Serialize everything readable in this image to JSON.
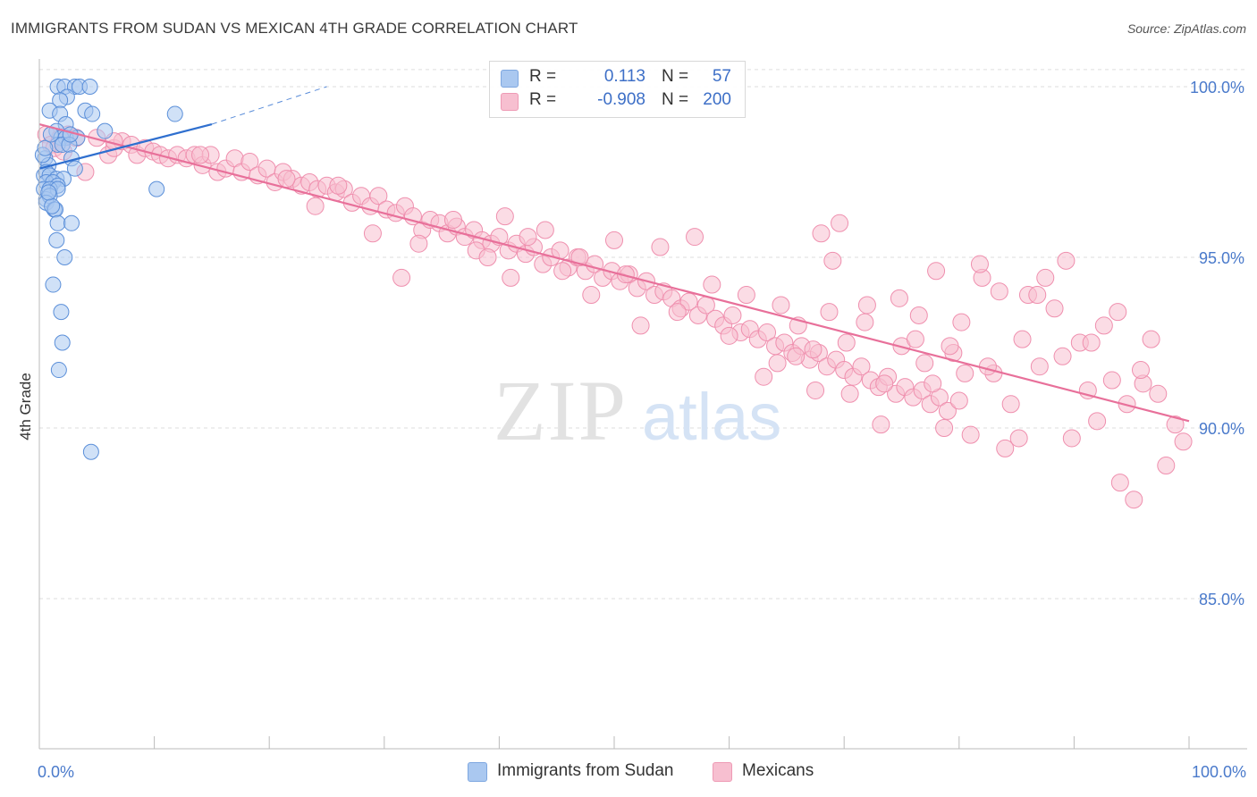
{
  "title": "IMMIGRANTS FROM SUDAN VS MEXICAN 4TH GRADE CORRELATION CHART",
  "source": "Source: ZipAtlas.com",
  "watermark": {
    "zip": "ZIP",
    "atlas": "atlas"
  },
  "colors": {
    "blue_fill": "#aac8f0",
    "blue_stroke": "#5b8fd9",
    "blue_line": "#2f6fcf",
    "pink_fill": "#f7bfd0",
    "pink_stroke": "#ef8fae",
    "pink_line": "#e8709a",
    "axis_value": "#4a7acb",
    "grid": "#dddddd"
  },
  "legend": [
    {
      "r_label": "R =",
      "r_value": "0.113",
      "n_label": "N =",
      "n_value": "57",
      "color": "#aac8f0"
    },
    {
      "r_label": "R =",
      "r_value": "-0.908",
      "n_label": "N =",
      "n_value": "200",
      "color": "#f7bfd0"
    }
  ],
  "bottom_legend": [
    {
      "label": "Immigrants from Sudan",
      "color": "#aac8f0"
    },
    {
      "label": "Mexicans",
      "color": "#f7bfd0"
    }
  ],
  "chart_data": {
    "type": "scatter",
    "title": "IMMIGRANTS FROM SUDAN VS MEXICAN 4TH GRADE CORRELATION CHART",
    "xlabel": "",
    "ylabel": "4th Grade",
    "xlim": [
      0,
      100
    ],
    "ylim": [
      80.5,
      100.5
    ],
    "x_tick_labels": [
      "0.0%",
      "100.0%"
    ],
    "y_ticks": [
      85,
      90,
      95,
      100
    ],
    "y_tick_labels": [
      "85.0%",
      "90.0%",
      "95.0%",
      "100.0%"
    ],
    "grid": true,
    "legend_position": "top-center",
    "series": [
      {
        "name": "Immigrants from Sudan",
        "r": 0.113,
        "n": 57,
        "trend": {
          "x": [
            0,
            15
          ],
          "y": [
            97.6,
            98.9
          ],
          "dashed_to": [
            25,
            100
          ]
        },
        "points": [
          [
            1.6,
            100
          ],
          [
            2.2,
            100
          ],
          [
            3.1,
            100
          ],
          [
            3.5,
            100
          ],
          [
            4.4,
            100
          ],
          [
            2.4,
            99.7
          ],
          [
            1.8,
            99.6
          ],
          [
            0.9,
            99.3
          ],
          [
            1.8,
            99.2
          ],
          [
            4.0,
            99.3
          ],
          [
            4.6,
            99.2
          ],
          [
            2.3,
            98.9
          ],
          [
            1.5,
            98.7
          ],
          [
            5.7,
            98.7
          ],
          [
            11.8,
            99.2
          ],
          [
            1.9,
            98.5
          ],
          [
            2.3,
            98.5
          ],
          [
            3.3,
            98.5
          ],
          [
            1.6,
            98.3
          ],
          [
            2.0,
            98.3
          ],
          [
            2.6,
            98.3
          ],
          [
            0.5,
            97.9
          ],
          [
            0.8,
            97.7
          ],
          [
            2.8,
            97.9
          ],
          [
            3.1,
            97.6
          ],
          [
            0.4,
            97.4
          ],
          [
            0.6,
            97.5
          ],
          [
            0.9,
            97.4
          ],
          [
            1.5,
            97.3
          ],
          [
            2.1,
            97.3
          ],
          [
            0.6,
            97.2
          ],
          [
            1.2,
            97.2
          ],
          [
            1.6,
            97.1
          ],
          [
            0.4,
            97.0
          ],
          [
            0.9,
            97.0
          ],
          [
            1.6,
            97.0
          ],
          [
            0.6,
            96.7
          ],
          [
            0.9,
            96.8
          ],
          [
            0.6,
            96.6
          ],
          [
            1.3,
            96.4
          ],
          [
            1.4,
            96.4
          ],
          [
            10.2,
            97.0
          ],
          [
            1.6,
            96.0
          ],
          [
            2.8,
            96.0
          ],
          [
            1.5,
            95.5
          ],
          [
            2.2,
            95.0
          ],
          [
            1.2,
            94.2
          ],
          [
            1.9,
            93.4
          ],
          [
            2.0,
            92.5
          ],
          [
            1.7,
            91.7
          ],
          [
            4.5,
            89.3
          ],
          [
            0.3,
            98.0
          ],
          [
            0.5,
            98.2
          ],
          [
            1.0,
            98.6
          ],
          [
            2.7,
            98.6
          ],
          [
            1.1,
            96.5
          ],
          [
            0.8,
            96.9
          ]
        ]
      },
      {
        "name": "Mexicans",
        "r": -0.908,
        "n": 200,
        "trend": {
          "x": [
            0,
            100
          ],
          "y": [
            98.9,
            90.2
          ]
        },
        "points": [
          [
            0.6,
            98.6
          ],
          [
            1.0,
            98.3
          ],
          [
            1.8,
            98.5
          ],
          [
            2.5,
            98.6
          ],
          [
            3.2,
            98.5
          ],
          [
            1.3,
            98.2
          ],
          [
            2.1,
            98.1
          ],
          [
            4.0,
            97.5
          ],
          [
            5.0,
            98.5
          ],
          [
            6.0,
            98.0
          ],
          [
            6.5,
            98.2
          ],
          [
            7.2,
            98.4
          ],
          [
            8.0,
            98.3
          ],
          [
            8.5,
            98.0
          ],
          [
            9.2,
            98.2
          ],
          [
            9.9,
            98.1
          ],
          [
            10.5,
            98.0
          ],
          [
            11.2,
            97.9
          ],
          [
            12.0,
            98.0
          ],
          [
            12.8,
            97.9
          ],
          [
            13.5,
            98.0
          ],
          [
            14.2,
            97.7
          ],
          [
            14.9,
            98.0
          ],
          [
            15.5,
            97.5
          ],
          [
            16.2,
            97.6
          ],
          [
            17.0,
            97.9
          ],
          [
            17.6,
            97.5
          ],
          [
            18.3,
            97.8
          ],
          [
            19.0,
            97.4
          ],
          [
            19.8,
            97.6
          ],
          [
            20.5,
            97.2
          ],
          [
            21.2,
            97.5
          ],
          [
            22.0,
            97.3
          ],
          [
            22.8,
            97.1
          ],
          [
            23.5,
            97.2
          ],
          [
            24.2,
            97.0
          ],
          [
            25.0,
            97.1
          ],
          [
            25.8,
            96.9
          ],
          [
            26.5,
            97.0
          ],
          [
            27.2,
            96.6
          ],
          [
            28.0,
            96.8
          ],
          [
            28.8,
            96.5
          ],
          [
            29.5,
            96.8
          ],
          [
            30.2,
            96.4
          ],
          [
            31.0,
            96.3
          ],
          [
            31.8,
            96.5
          ],
          [
            32.5,
            96.2
          ],
          [
            33.3,
            95.8
          ],
          [
            34.0,
            96.1
          ],
          [
            34.8,
            96.0
          ],
          [
            35.5,
            95.7
          ],
          [
            36.3,
            95.9
          ],
          [
            37.0,
            95.6
          ],
          [
            37.8,
            95.8
          ],
          [
            38.5,
            95.5
          ],
          [
            39.3,
            95.4
          ],
          [
            40.0,
            95.6
          ],
          [
            40.8,
            95.2
          ],
          [
            41.5,
            95.4
          ],
          [
            42.3,
            95.1
          ],
          [
            43.0,
            95.3
          ],
          [
            43.8,
            94.8
          ],
          [
            44.5,
            95.0
          ],
          [
            45.3,
            95.2
          ],
          [
            46.0,
            94.7
          ],
          [
            46.8,
            95.0
          ],
          [
            47.5,
            94.6
          ],
          [
            48.3,
            94.8
          ],
          [
            49.0,
            94.4
          ],
          [
            49.8,
            94.6
          ],
          [
            50.5,
            94.3
          ],
          [
            51.3,
            94.5
          ],
          [
            52.0,
            94.1
          ],
          [
            52.8,
            94.3
          ],
          [
            53.5,
            93.9
          ],
          [
            54.3,
            94.0
          ],
          [
            55.0,
            93.8
          ],
          [
            55.8,
            93.5
          ],
          [
            56.5,
            93.7
          ],
          [
            57.3,
            93.3
          ],
          [
            58.0,
            93.6
          ],
          [
            58.8,
            93.2
          ],
          [
            59.5,
            93.0
          ],
          [
            60.3,
            93.3
          ],
          [
            61.0,
            92.8
          ],
          [
            61.8,
            92.9
          ],
          [
            62.5,
            92.6
          ],
          [
            63.3,
            92.8
          ],
          [
            64.0,
            92.4
          ],
          [
            64.8,
            92.5
          ],
          [
            65.5,
            92.2
          ],
          [
            66.3,
            92.4
          ],
          [
            67.0,
            92.0
          ],
          [
            67.8,
            92.2
          ],
          [
            68.5,
            91.8
          ],
          [
            69.3,
            92.0
          ],
          [
            70.0,
            91.7
          ],
          [
            70.8,
            91.5
          ],
          [
            71.5,
            91.8
          ],
          [
            72.3,
            91.4
          ],
          [
            73.0,
            91.2
          ],
          [
            73.8,
            91.5
          ],
          [
            74.5,
            91.0
          ],
          [
            75.3,
            91.2
          ],
          [
            76.0,
            90.9
          ],
          [
            76.8,
            91.1
          ],
          [
            77.5,
            90.7
          ],
          [
            78.3,
            90.9
          ],
          [
            79.0,
            90.5
          ],
          [
            80.0,
            90.8
          ],
          [
            6.5,
            98.4
          ],
          [
            14.0,
            98.0
          ],
          [
            21.5,
            97.3
          ],
          [
            24.0,
            96.5
          ],
          [
            26.0,
            97.1
          ],
          [
            29.0,
            95.7
          ],
          [
            31.5,
            94.4
          ],
          [
            33.0,
            95.4
          ],
          [
            36.0,
            96.1
          ],
          [
            38.0,
            95.2
          ],
          [
            39.0,
            95.0
          ],
          [
            40.5,
            96.2
          ],
          [
            41.0,
            94.4
          ],
          [
            42.5,
            95.6
          ],
          [
            44.0,
            95.8
          ],
          [
            45.5,
            94.6
          ],
          [
            47.0,
            95.0
          ],
          [
            48.0,
            93.9
          ],
          [
            50.0,
            95.5
          ],
          [
            51.0,
            94.5
          ],
          [
            52.3,
            93.0
          ],
          [
            54.0,
            95.3
          ],
          [
            55.5,
            93.4
          ],
          [
            57.0,
            95.6
          ],
          [
            58.5,
            94.2
          ],
          [
            60.0,
            92.7
          ],
          [
            61.5,
            93.9
          ],
          [
            63.0,
            91.5
          ],
          [
            64.5,
            93.6
          ],
          [
            66.0,
            93.0
          ],
          [
            67.5,
            91.1
          ],
          [
            68.0,
            95.7
          ],
          [
            69.0,
            94.9
          ],
          [
            70.5,
            91.0
          ],
          [
            72.0,
            93.6
          ],
          [
            73.5,
            91.3
          ],
          [
            75.0,
            92.4
          ],
          [
            76.5,
            93.3
          ],
          [
            77.0,
            91.9
          ],
          [
            78.0,
            94.6
          ],
          [
            79.5,
            92.2
          ],
          [
            80.5,
            91.6
          ],
          [
            81.0,
            89.8
          ],
          [
            82.0,
            94.4
          ],
          [
            83.0,
            91.6
          ],
          [
            84.0,
            89.4
          ],
          [
            84.5,
            90.7
          ],
          [
            85.5,
            92.6
          ],
          [
            86.0,
            93.9
          ],
          [
            87.0,
            91.8
          ],
          [
            87.5,
            94.4
          ],
          [
            88.3,
            93.5
          ],
          [
            89.0,
            92.1
          ],
          [
            89.8,
            89.7
          ],
          [
            90.5,
            92.5
          ],
          [
            91.2,
            91.1
          ],
          [
            92.0,
            90.2
          ],
          [
            92.6,
            93.0
          ],
          [
            93.3,
            91.4
          ],
          [
            94.0,
            88.4
          ],
          [
            94.6,
            90.7
          ],
          [
            95.2,
            87.9
          ],
          [
            96.0,
            91.3
          ],
          [
            96.7,
            92.6
          ],
          [
            97.3,
            91.0
          ],
          [
            98.0,
            88.9
          ],
          [
            98.8,
            90.1
          ],
          [
            99.5,
            89.6
          ],
          [
            95.8,
            91.7
          ],
          [
            93.8,
            93.4
          ],
          [
            91.5,
            92.5
          ],
          [
            89.3,
            94.9
          ],
          [
            86.8,
            93.9
          ],
          [
            85.2,
            89.7
          ],
          [
            83.5,
            94.0
          ],
          [
            82.5,
            91.8
          ],
          [
            81.8,
            94.8
          ],
          [
            80.2,
            93.1
          ],
          [
            79.2,
            92.4
          ],
          [
            78.7,
            90.0
          ],
          [
            77.7,
            91.3
          ],
          [
            76.2,
            92.6
          ],
          [
            74.8,
            93.8
          ],
          [
            73.2,
            90.1
          ],
          [
            71.8,
            93.1
          ],
          [
            70.2,
            92.5
          ],
          [
            69.6,
            96.0
          ],
          [
            68.7,
            93.4
          ],
          [
            67.3,
            92.3
          ],
          [
            65.8,
            92.1
          ],
          [
            64.2,
            91.9
          ]
        ]
      }
    ]
  }
}
